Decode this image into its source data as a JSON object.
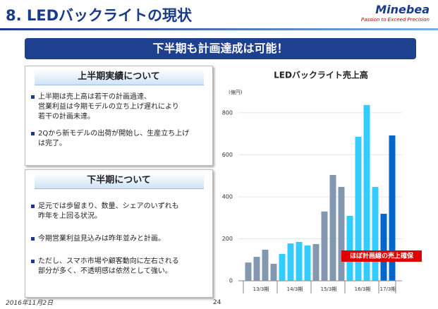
{
  "header": {
    "title": "8. LEDバックライトの現状",
    "logo": "Minebea",
    "tagline": "Passion to Exceed Precision"
  },
  "banner": "下半期も計画達成は可能！",
  "boxes": [
    {
      "heading": "上半期実績について",
      "bullets": [
        [
          "上半期は売上高は若干の計画過達、",
          "営業利益は今期モデルの立ち上げ遅れにより",
          "若干の計画未達。"
        ],
        [
          "2Qから新モデルの出荷が開始し、生産立ち上げ",
          "は完了。"
        ]
      ]
    },
    {
      "heading": "下半期について",
      "bullets": [
        [
          "足元では歩留まり、数量、シェアのいずれも",
          "昨年を上回る状況。"
        ],
        [
          "今期営業利益見込みは昨年並みと計画。"
        ],
        [
          "ただし、スマホ市場や顧客動向に左右される",
          "部分が多く、不透明感は依然として強い。"
        ]
      ]
    }
  ],
  "footer": {
    "date": "2016年11月2日",
    "page": "24"
  },
  "chart_data": {
    "type": "bar",
    "title": "LEDバックライト売上高",
    "y_label": "(億円)",
    "categories": [
      null,
      "13/3期",
      null,
      null,
      null,
      "14/3期",
      null,
      null,
      null,
      "15/3期",
      null,
      null,
      null,
      "16/3期",
      null,
      null,
      "17/3期",
      null
    ],
    "values": [
      87,
      114,
      148,
      81,
      128,
      178,
      185,
      168,
      175,
      330,
      504,
      447,
      309,
      686,
      837,
      447,
      319,
      692
    ],
    "colors": [
      "#8497b0",
      "#8497b0",
      "#8497b0",
      "#8497b0",
      "#33ccff",
      "#33ccff",
      "#33ccff",
      "#33ccff",
      "#8497b0",
      "#8497b0",
      "#8497b0",
      "#8497b0",
      "#33ccff",
      "#33ccff",
      "#33ccff",
      "#33ccff",
      "#0066cc",
      "#0066cc"
    ],
    "ylim": [
      0,
      850
    ],
    "yticks": [
      0,
      200,
      400,
      600,
      800
    ],
    "grid": true,
    "annotation": "ほぼ計画線の売上確保"
  }
}
